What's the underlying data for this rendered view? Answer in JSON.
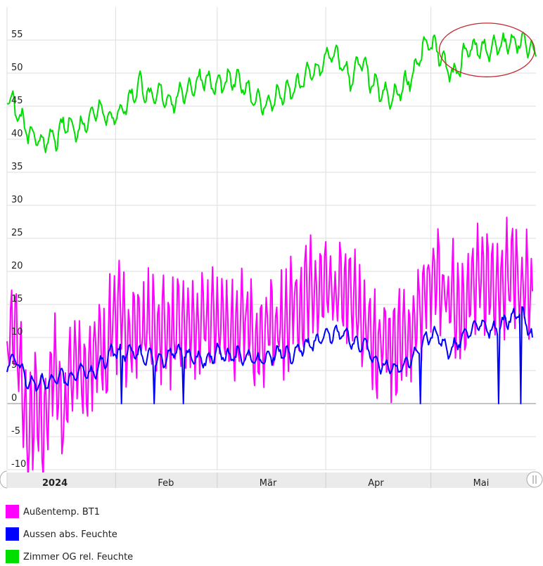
{
  "chart_data": {
    "type": "line",
    "title": "",
    "xlabel": "",
    "ylabel": "",
    "x_range": [
      "2024-01-01",
      "2024-05-31"
    ],
    "ylim": [
      -10,
      60
    ],
    "y_ticks": [
      -10,
      -5,
      0,
      5,
      10,
      15,
      20,
      25,
      30,
      35,
      40,
      45,
      50,
      55
    ],
    "x_tick_labels": [
      {
        "label": "2024",
        "date": "2024-01-01",
        "bold": true
      },
      {
        "label": "Feb",
        "date": "2024-02-01",
        "bold": false
      },
      {
        "label": "Mär",
        "date": "2024-03-01",
        "bold": false
      },
      {
        "label": "Apr",
        "date": "2024-04-01",
        "bold": false
      },
      {
        "label": "Mai",
        "date": "2024-05-01",
        "bold": false
      }
    ],
    "grid": true,
    "legend_position": "bottom-left",
    "annotation": {
      "type": "ellipse",
      "color": "#c0282d",
      "x_range": [
        "2024-05-05",
        "2024-05-29"
      ],
      "y_range": [
        50.5,
        56.5
      ]
    },
    "series": [
      {
        "name": "Außentemp. BT1",
        "color": "#ff00ff",
        "points": [
          [
            "2024-01-01",
            10
          ],
          [
            "2024-01-03",
            12
          ],
          [
            "2024-01-05",
            4
          ],
          [
            "2024-01-07",
            -6
          ],
          [
            "2024-01-09",
            0
          ],
          [
            "2024-01-11",
            -5
          ],
          [
            "2024-01-13",
            2
          ],
          [
            "2024-01-15",
            6
          ],
          [
            "2024-01-17",
            -3
          ],
          [
            "2024-01-19",
            5
          ],
          [
            "2024-01-21",
            8
          ],
          [
            "2024-01-23",
            2
          ],
          [
            "2024-01-25",
            5
          ],
          [
            "2024-01-27",
            10
          ],
          [
            "2024-01-29",
            6
          ],
          [
            "2024-01-31",
            14
          ],
          [
            "2024-02-03",
            12
          ],
          [
            "2024-02-06",
            11
          ],
          [
            "2024-02-09",
            12
          ],
          [
            "2024-02-12",
            11
          ],
          [
            "2024-02-15",
            12
          ],
          [
            "2024-02-18",
            10
          ],
          [
            "2024-02-21",
            12
          ],
          [
            "2024-02-24",
            11
          ],
          [
            "2024-02-27",
            12
          ],
          [
            "2024-03-01",
            13
          ],
          [
            "2024-03-04",
            12
          ],
          [
            "2024-03-07",
            11
          ],
          [
            "2024-03-10",
            12
          ],
          [
            "2024-03-13",
            10
          ],
          [
            "2024-03-16",
            12
          ],
          [
            "2024-03-19",
            11
          ],
          [
            "2024-03-22",
            15
          ],
          [
            "2024-03-25",
            16
          ],
          [
            "2024-03-28",
            16
          ],
          [
            "2024-03-31",
            17
          ],
          [
            "2024-04-03",
            16
          ],
          [
            "2024-04-06",
            17
          ],
          [
            "2024-04-09",
            15
          ],
          [
            "2024-04-12",
            12
          ],
          [
            "2024-04-15",
            9
          ],
          [
            "2024-04-18",
            10
          ],
          [
            "2024-04-21",
            8
          ],
          [
            "2024-04-24",
            10
          ],
          [
            "2024-04-27",
            13
          ],
          [
            "2024-04-30",
            17
          ],
          [
            "2024-05-03",
            18
          ],
          [
            "2024-05-06",
            16
          ],
          [
            "2024-05-09",
            15
          ],
          [
            "2024-05-12",
            17
          ],
          [
            "2024-05-15",
            18
          ],
          [
            "2024-05-18",
            19
          ],
          [
            "2024-05-21",
            19
          ],
          [
            "2024-05-24",
            20
          ],
          [
            "2024-05-27",
            18
          ],
          [
            "2024-05-30",
            17
          ]
        ]
      },
      {
        "name": "Aussen abs. Feuchte",
        "color": "#0000ff",
        "points": [
          [
            "2024-01-01",
            6
          ],
          [
            "2024-01-04",
            6.5
          ],
          [
            "2024-01-07",
            3
          ],
          [
            "2024-01-10",
            3
          ],
          [
            "2024-01-13",
            3.5
          ],
          [
            "2024-01-16",
            4
          ],
          [
            "2024-01-19",
            3.5
          ],
          [
            "2024-01-22",
            5
          ],
          [
            "2024-01-25",
            4.5
          ],
          [
            "2024-01-28",
            6
          ],
          [
            "2024-01-31",
            8
          ],
          [
            "2024-02-03",
            7.5
          ],
          [
            "2024-02-06",
            8
          ],
          [
            "2024-02-09",
            7
          ],
          [
            "2024-02-12",
            7
          ],
          [
            "2024-02-15",
            6.5
          ],
          [
            "2024-02-18",
            8
          ],
          [
            "2024-02-21",
            7.5
          ],
          [
            "2024-02-24",
            7
          ],
          [
            "2024-02-27",
            6.5
          ],
          [
            "2024-03-01",
            8
          ],
          [
            "2024-03-04",
            7
          ],
          [
            "2024-03-07",
            7.5
          ],
          [
            "2024-03-10",
            7
          ],
          [
            "2024-03-13",
            6.5
          ],
          [
            "2024-03-16",
            7
          ],
          [
            "2024-03-19",
            8
          ],
          [
            "2024-03-22",
            7
          ],
          [
            "2024-03-25",
            8.5
          ],
          [
            "2024-03-28",
            9
          ],
          [
            "2024-03-31",
            10
          ],
          [
            "2024-04-03",
            10.5
          ],
          [
            "2024-04-06",
            11
          ],
          [
            "2024-04-09",
            9
          ],
          [
            "2024-04-12",
            9
          ],
          [
            "2024-04-15",
            6.5
          ],
          [
            "2024-04-18",
            5.5
          ],
          [
            "2024-04-21",
            5
          ],
          [
            "2024-04-24",
            6
          ],
          [
            "2024-04-27",
            8
          ],
          [
            "2024-04-30",
            10
          ],
          [
            "2024-05-03",
            10.5
          ],
          [
            "2024-05-06",
            7.5
          ],
          [
            "2024-05-09",
            9.5
          ],
          [
            "2024-05-12",
            11
          ],
          [
            "2024-05-15",
            12
          ],
          [
            "2024-05-18",
            11
          ],
          [
            "2024-05-21",
            12
          ],
          [
            "2024-05-24",
            13
          ],
          [
            "2024-05-27",
            14
          ],
          [
            "2024-05-30",
            10
          ]
        ]
      },
      {
        "name": "Zimmer OG rel. Feuchte",
        "color": "#00dd00",
        "points": [
          [
            "2024-01-01",
            47
          ],
          [
            "2024-01-03",
            45
          ],
          [
            "2024-01-05",
            43
          ],
          [
            "2024-01-07",
            41
          ],
          [
            "2024-01-09",
            40
          ],
          [
            "2024-01-11",
            39.5
          ],
          [
            "2024-01-13",
            40
          ],
          [
            "2024-01-15",
            40
          ],
          [
            "2024-01-17",
            42
          ],
          [
            "2024-01-19",
            42.5
          ],
          [
            "2024-01-21",
            41
          ],
          [
            "2024-01-23",
            42.5
          ],
          [
            "2024-01-25",
            43.5
          ],
          [
            "2024-01-27",
            45
          ],
          [
            "2024-01-29",
            44
          ],
          [
            "2024-01-31",
            43
          ],
          [
            "2024-02-02",
            44
          ],
          [
            "2024-02-05",
            46
          ],
          [
            "2024-02-08",
            48.5
          ],
          [
            "2024-02-11",
            46
          ],
          [
            "2024-02-14",
            47
          ],
          [
            "2024-02-17",
            45.5
          ],
          [
            "2024-02-20",
            47
          ],
          [
            "2024-02-23",
            48
          ],
          [
            "2024-02-26",
            49.5
          ],
          [
            "2024-02-29",
            48
          ],
          [
            "2024-03-03",
            48.5
          ],
          [
            "2024-03-06",
            49
          ],
          [
            "2024-03-09",
            48
          ],
          [
            "2024-03-12",
            46
          ],
          [
            "2024-03-15",
            45
          ],
          [
            "2024-03-18",
            46.5
          ],
          [
            "2024-03-21",
            47
          ],
          [
            "2024-03-24",
            48
          ],
          [
            "2024-03-27",
            50
          ],
          [
            "2024-03-30",
            50.5
          ],
          [
            "2024-04-02",
            53
          ],
          [
            "2024-04-05",
            52
          ],
          [
            "2024-04-08",
            49
          ],
          [
            "2024-04-11",
            52
          ],
          [
            "2024-04-14",
            48.5
          ],
          [
            "2024-04-17",
            47
          ],
          [
            "2024-04-20",
            46
          ],
          [
            "2024-04-23",
            48
          ],
          [
            "2024-04-26",
            50
          ],
          [
            "2024-04-29",
            54
          ],
          [
            "2024-05-02",
            54.5
          ],
          [
            "2024-05-05",
            51
          ],
          [
            "2024-05-08",
            49.5
          ],
          [
            "2024-05-11",
            53.5
          ],
          [
            "2024-05-14",
            54
          ],
          [
            "2024-05-17",
            53.5
          ],
          [
            "2024-05-20",
            54
          ],
          [
            "2024-05-23",
            54.5
          ],
          [
            "2024-05-26",
            55
          ],
          [
            "2024-05-29",
            54
          ],
          [
            "2024-05-31",
            52.5
          ]
        ]
      }
    ]
  },
  "scrollbar": {
    "left_handle_icon": "scroll-handle-left-icon",
    "right_handle_icon": "scroll-handle-right-icon"
  }
}
